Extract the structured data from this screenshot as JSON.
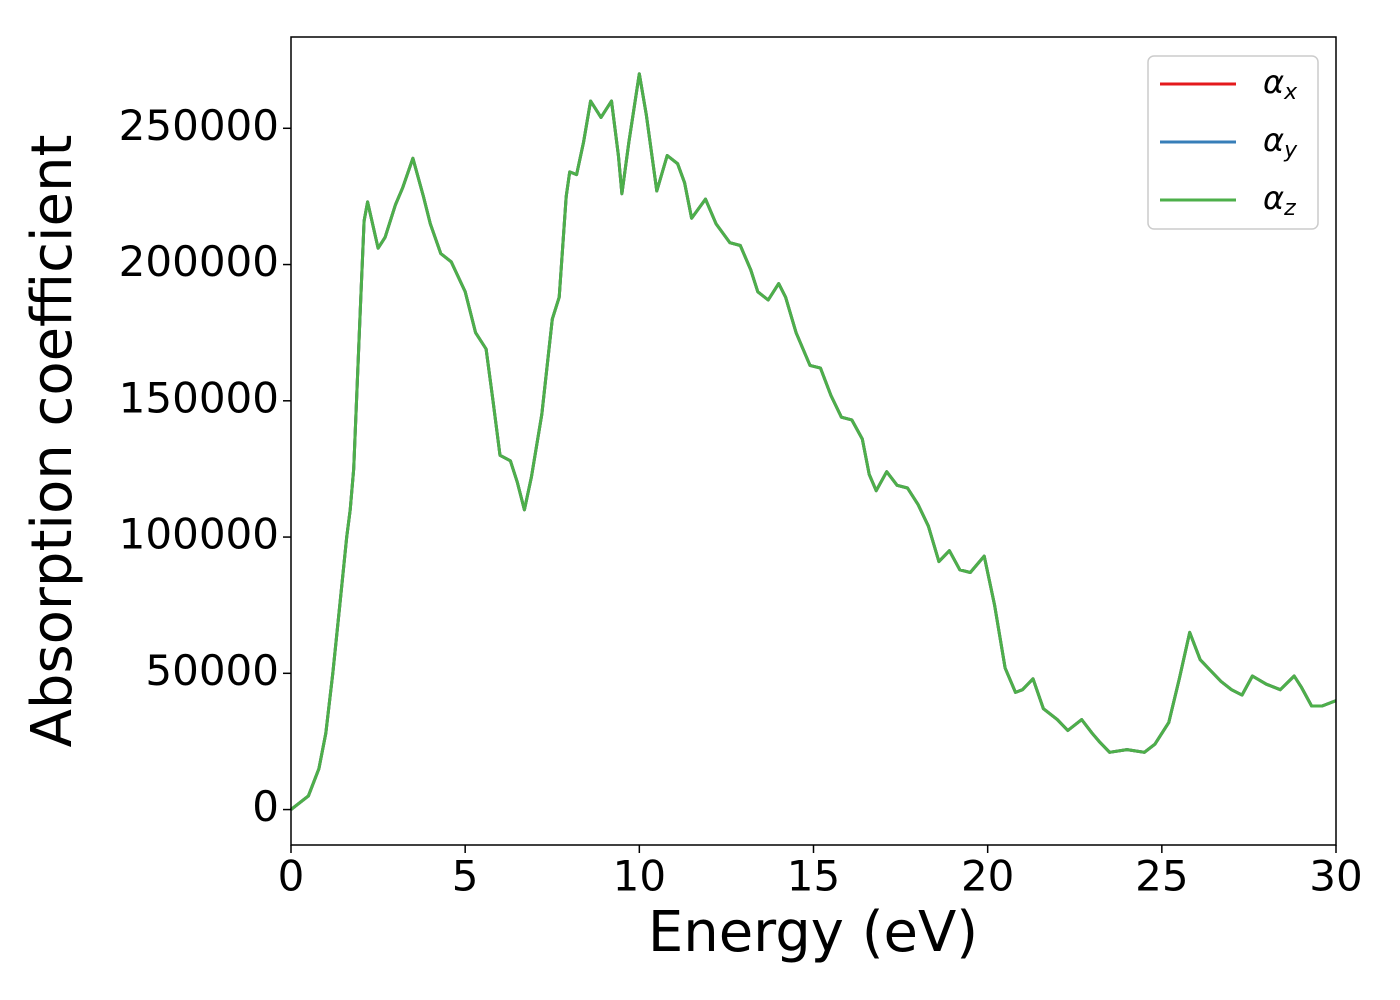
{
  "chart_data": {
    "type": "line",
    "xlabel": "Energy (eV)",
    "ylabel": "Absorption coefficient",
    "x": [
      0,
      0.5,
      0.8,
      1.0,
      1.2,
      1.4,
      1.6,
      1.7,
      1.8,
      2.0,
      2.1,
      2.2,
      2.5,
      2.7,
      3.0,
      3.2,
      3.5,
      3.8,
      4.0,
      4.3,
      4.6,
      5.0,
      5.3,
      5.6,
      5.8,
      6.0,
      6.3,
      6.5,
      6.7,
      6.9,
      7.2,
      7.5,
      7.7,
      7.9,
      8.0,
      8.2,
      8.4,
      8.6,
      8.9,
      9.2,
      9.4,
      9.5,
      9.7,
      10.0,
      10.2,
      10.5,
      10.8,
      11.1,
      11.3,
      11.5,
      11.9,
      12.2,
      12.6,
      12.9,
      13.2,
      13.4,
      13.7,
      14.0,
      14.2,
      14.5,
      14.9,
      15.2,
      15.5,
      15.8,
      16.1,
      16.4,
      16.6,
      16.8,
      17.1,
      17.4,
      17.7,
      18.0,
      18.3,
      18.6,
      18.9,
      19.2,
      19.5,
      19.9,
      20.2,
      20.5,
      20.8,
      21.0,
      21.3,
      21.6,
      22.0,
      22.3,
      22.7,
      23.0,
      23.2,
      23.5,
      24.0,
      24.5,
      24.8,
      25.2,
      25.5,
      25.8,
      26.1,
      26.4,
      26.7,
      27.0,
      27.3,
      27.6,
      28.0,
      28.4,
      28.8,
      29.0,
      29.3,
      29.6,
      30.0
    ],
    "series": [
      {
        "name": "αx",
        "color": "#e41a1c",
        "values": [
          0,
          5000,
          15000,
          28000,
          50000,
          75000,
          100000,
          110000,
          125000,
          187000,
          216000,
          223000,
          206000,
          210000,
          222000,
          228000,
          239000,
          225000,
          215000,
          204000,
          201000,
          190000,
          175000,
          169000,
          150000,
          130000,
          128000,
          120000,
          110000,
          122000,
          145000,
          180000,
          188000,
          225000,
          234000,
          233000,
          245000,
          260000,
          254000,
          260000,
          240000,
          226000,
          245000,
          270000,
          255000,
          227000,
          240000,
          237000,
          230000,
          217000,
          224000,
          215000,
          208000,
          207000,
          198000,
          190000,
          187000,
          193000,
          188000,
          175000,
          163000,
          162000,
          152000,
          144000,
          143000,
          136000,
          123000,
          117000,
          124000,
          119000,
          118000,
          112000,
          104000,
          91000,
          95000,
          88000,
          87000,
          93000,
          75000,
          52000,
          43000,
          44000,
          48000,
          37000,
          33000,
          29000,
          33000,
          28000,
          25000,
          21000,
          22000,
          21000,
          24000,
          32000,
          48000,
          65000,
          55000,
          51000,
          47000,
          44000,
          42000,
          49000,
          46000,
          44000,
          49000,
          45000,
          38000,
          38000,
          40000
        ]
      },
      {
        "name": "αy",
        "color": "#377eb8",
        "values": [
          0,
          5000,
          15000,
          28000,
          50000,
          75000,
          100000,
          110000,
          125000,
          187000,
          216000,
          223000,
          206000,
          210000,
          222000,
          228000,
          239000,
          225000,
          215000,
          204000,
          201000,
          190000,
          175000,
          169000,
          150000,
          130000,
          128000,
          120000,
          110000,
          122000,
          145000,
          180000,
          188000,
          225000,
          234000,
          233000,
          245000,
          260000,
          254000,
          260000,
          240000,
          226000,
          245000,
          270000,
          255000,
          227000,
          240000,
          237000,
          230000,
          217000,
          224000,
          215000,
          208000,
          207000,
          198000,
          190000,
          187000,
          193000,
          188000,
          175000,
          163000,
          162000,
          152000,
          144000,
          143000,
          136000,
          123000,
          117000,
          124000,
          119000,
          118000,
          112000,
          104000,
          91000,
          95000,
          88000,
          87000,
          93000,
          75000,
          52000,
          43000,
          44000,
          48000,
          37000,
          33000,
          29000,
          33000,
          28000,
          25000,
          21000,
          22000,
          21000,
          24000,
          32000,
          48000,
          65000,
          55000,
          51000,
          47000,
          44000,
          42000,
          49000,
          46000,
          44000,
          49000,
          45000,
          38000,
          38000,
          40000
        ]
      },
      {
        "name": "αz",
        "color": "#4daf4a",
        "values": [
          0,
          5000,
          15000,
          28000,
          50000,
          75000,
          100000,
          110000,
          125000,
          187000,
          216000,
          223000,
          206000,
          210000,
          222000,
          228000,
          239000,
          225000,
          215000,
          204000,
          201000,
          190000,
          175000,
          169000,
          150000,
          130000,
          128000,
          120000,
          110000,
          122000,
          145000,
          180000,
          188000,
          225000,
          234000,
          233000,
          245000,
          260000,
          254000,
          260000,
          240000,
          226000,
          245000,
          270000,
          255000,
          227000,
          240000,
          237000,
          230000,
          217000,
          224000,
          215000,
          208000,
          207000,
          198000,
          190000,
          187000,
          193000,
          188000,
          175000,
          163000,
          162000,
          152000,
          144000,
          143000,
          136000,
          123000,
          117000,
          124000,
          119000,
          118000,
          112000,
          104000,
          91000,
          95000,
          88000,
          87000,
          93000,
          75000,
          52000,
          43000,
          44000,
          48000,
          37000,
          33000,
          29000,
          33000,
          28000,
          25000,
          21000,
          22000,
          21000,
          24000,
          32000,
          48000,
          65000,
          55000,
          51000,
          47000,
          44000,
          42000,
          49000,
          46000,
          44000,
          49000,
          45000,
          38000,
          38000,
          40000
        ]
      }
    ],
    "xlim": [
      0,
      30
    ],
    "xticks": [
      0,
      5,
      10,
      15,
      20,
      25,
      30
    ],
    "ylim": [
      -13000,
      283500
    ],
    "yticks": [
      0,
      50000,
      100000,
      150000,
      200000,
      250000
    ],
    "grid": false,
    "legend": "upper right"
  }
}
